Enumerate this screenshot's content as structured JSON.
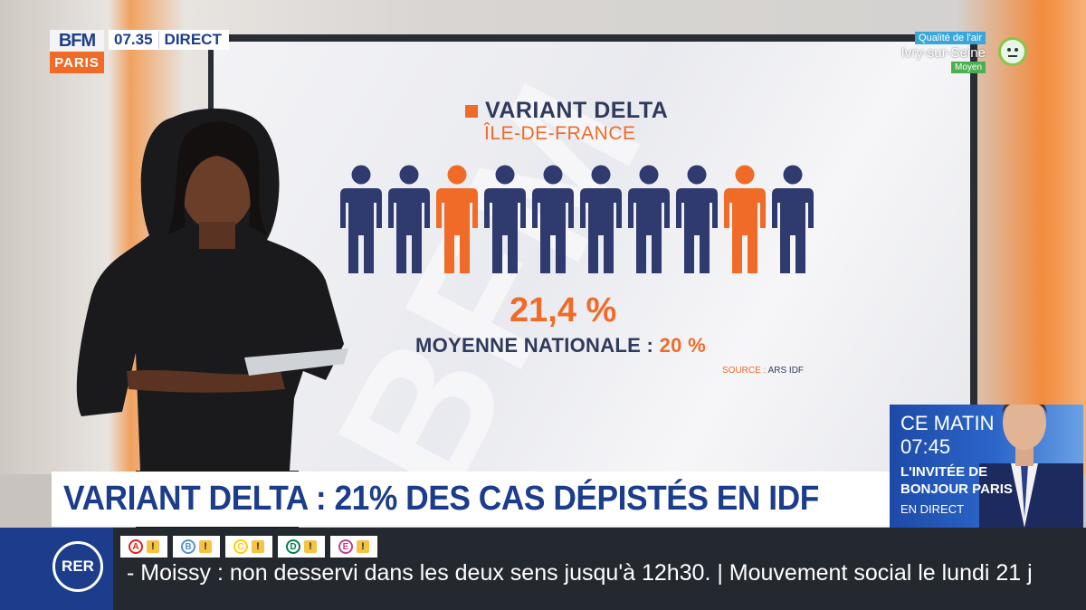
{
  "channel": {
    "logo_top": "BFM",
    "logo_bottom": "PARIS",
    "time": "07.35",
    "live": "DIRECT"
  },
  "air_quality": {
    "label": "Qualité de l'air",
    "city": "Ivry-sur-Seine",
    "level": "Moyen",
    "icon": "neutral-face-icon"
  },
  "graphic": {
    "title": "VARIANT DELTA",
    "subtitle": "ÎLE-DE-FRANCE",
    "percentage": "21,4 %",
    "national_label": "MOYENNE NATIONALE :",
    "national_value": "20 %",
    "source_label": "SOURCE :",
    "source_value": "ARS IDF",
    "watermark": "BFM",
    "people_highlight": [
      false,
      false,
      true,
      false,
      false,
      false,
      false,
      false,
      true,
      false
    ],
    "colors": {
      "navy": "#2f3a6e",
      "orange": "#f06a28"
    }
  },
  "promo": {
    "line1": "CE MATIN",
    "line2": "07:45",
    "line3": "L'INVITÉE DE",
    "line4": "BONJOUR PARIS",
    "line5": "EN DIRECT"
  },
  "headline": "VARIANT DELTA : 21% DES CAS DÉPISTÉS EN IDF",
  "ticker": {
    "badge": "RER",
    "lines": [
      {
        "letter": "A",
        "color": "#e2231a"
      },
      {
        "letter": "B",
        "color": "#5291ce"
      },
      {
        "letter": "C",
        "color": "#ffcd00"
      },
      {
        "letter": "D",
        "color": "#00814f"
      },
      {
        "letter": "E",
        "color": "#c04191"
      }
    ],
    "warning_symbol": "!",
    "text": "- Moissy : non desservi dans les deux sens jusqu'à 12h30. | Mouvement social le lundi 21 j"
  }
}
